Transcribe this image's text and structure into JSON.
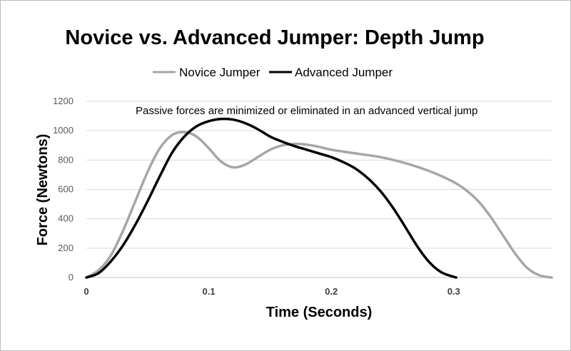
{
  "chart_data": {
    "type": "line",
    "title": "Novice vs. Advanced Jumper:  Depth Jump",
    "xlabel": "Time (Seconds)",
    "ylabel": "Force (Newtons)",
    "xlim": [
      0,
      0.38
    ],
    "ylim": [
      0,
      1200
    ],
    "x_ticks": [
      0,
      0.1,
      0.2,
      0.3
    ],
    "x_tick_labels": [
      "0",
      "0.1",
      "0.2",
      "0.3"
    ],
    "y_ticks": [
      0,
      200,
      400,
      600,
      800,
      1000,
      1200
    ],
    "y_tick_labels": [
      "0",
      "200",
      "400",
      "600",
      "800",
      "1000",
      "1200"
    ],
    "grid": true,
    "legend_position": "top",
    "annotation": "Passive forces are minimized or eliminated in an advanced vertical jump",
    "series": [
      {
        "name": "Novice Jumper",
        "color": "#a6a6a6",
        "points": [
          [
            0,
            0
          ],
          [
            0.01,
            50
          ],
          [
            0.02,
            150
          ],
          [
            0.03,
            320
          ],
          [
            0.04,
            520
          ],
          [
            0.05,
            720
          ],
          [
            0.06,
            880
          ],
          [
            0.07,
            970
          ],
          [
            0.08,
            990
          ],
          [
            0.09,
            960
          ],
          [
            0.1,
            880
          ],
          [
            0.11,
            790
          ],
          [
            0.12,
            750
          ],
          [
            0.13,
            770
          ],
          [
            0.14,
            820
          ],
          [
            0.15,
            870
          ],
          [
            0.16,
            900
          ],
          [
            0.17,
            910
          ],
          [
            0.18,
            905
          ],
          [
            0.19,
            890
          ],
          [
            0.2,
            870
          ],
          [
            0.22,
            845
          ],
          [
            0.24,
            820
          ],
          [
            0.26,
            780
          ],
          [
            0.28,
            725
          ],
          [
            0.3,
            650
          ],
          [
            0.31,
            595
          ],
          [
            0.32,
            520
          ],
          [
            0.33,
            415
          ],
          [
            0.34,
            290
          ],
          [
            0.35,
            165
          ],
          [
            0.36,
            65
          ],
          [
            0.37,
            15
          ],
          [
            0.38,
            0
          ]
        ]
      },
      {
        "name": "Advanced Jumper",
        "color": "#000000",
        "points": [
          [
            0,
            0
          ],
          [
            0.01,
            30
          ],
          [
            0.02,
            110
          ],
          [
            0.03,
            220
          ],
          [
            0.04,
            360
          ],
          [
            0.05,
            520
          ],
          [
            0.06,
            690
          ],
          [
            0.07,
            850
          ],
          [
            0.08,
            960
          ],
          [
            0.09,
            1030
          ],
          [
            0.1,
            1065
          ],
          [
            0.11,
            1080
          ],
          [
            0.12,
            1075
          ],
          [
            0.13,
            1050
          ],
          [
            0.14,
            1010
          ],
          [
            0.15,
            960
          ],
          [
            0.16,
            925
          ],
          [
            0.17,
            895
          ],
          [
            0.18,
            870
          ],
          [
            0.19,
            845
          ],
          [
            0.2,
            820
          ],
          [
            0.21,
            785
          ],
          [
            0.22,
            740
          ],
          [
            0.23,
            675
          ],
          [
            0.24,
            590
          ],
          [
            0.25,
            480
          ],
          [
            0.26,
            350
          ],
          [
            0.27,
            215
          ],
          [
            0.28,
            105
          ],
          [
            0.29,
            35
          ],
          [
            0.3,
            5
          ],
          [
            0.302,
            0
          ]
        ]
      }
    ]
  }
}
